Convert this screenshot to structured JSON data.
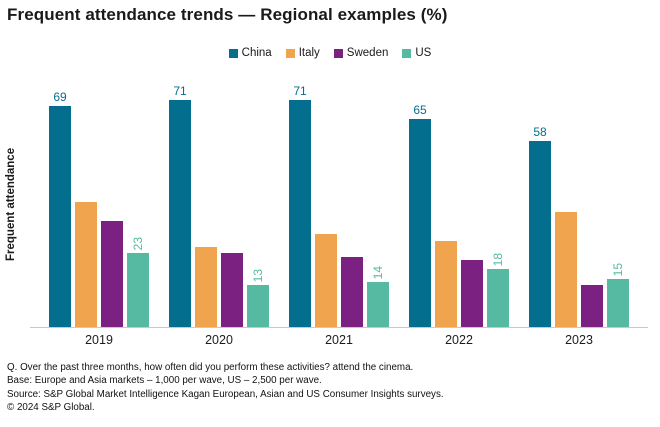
{
  "chart_data": {
    "type": "bar",
    "title": "Frequent attendance trends — Regional examples (%)",
    "ylabel": "Frequent attendance",
    "xlabel": "",
    "categories": [
      "2019",
      "2020",
      "2021",
      "2022",
      "2023"
    ],
    "series": [
      {
        "name": "China",
        "color": "#046e8e",
        "values": [
          69,
          71,
          71,
          65,
          58
        ],
        "data_labels": "horizontal"
      },
      {
        "name": "Italy",
        "color": "#f0a44d",
        "values": [
          39,
          25,
          29,
          27,
          36
        ],
        "data_labels": "none"
      },
      {
        "name": "Sweden",
        "color": "#7a2182",
        "values": [
          33,
          23,
          22,
          21,
          13
        ],
        "data_labels": "none"
      },
      {
        "name": "US",
        "color": "#56b9a2",
        "values": [
          23,
          13,
          14,
          18,
          15
        ],
        "data_labels": "vertical"
      }
    ],
    "ylim": [
      0,
      76
    ],
    "grid": false,
    "legend_position": "top-center",
    "axis_line_color": "#c9c9c9"
  },
  "footnotes": {
    "question": "Q. Over the past three months, how often did you perform these activities? attend the cinema.",
    "base": "Base: Europe and Asia markets – 1,000 per wave, US – 2,500 per wave.",
    "source": "Source: S&P Global Market Intelligence Kagan European, Asian and US Consumer Insights surveys.",
    "copyright": "© 2024 S&P Global."
  }
}
